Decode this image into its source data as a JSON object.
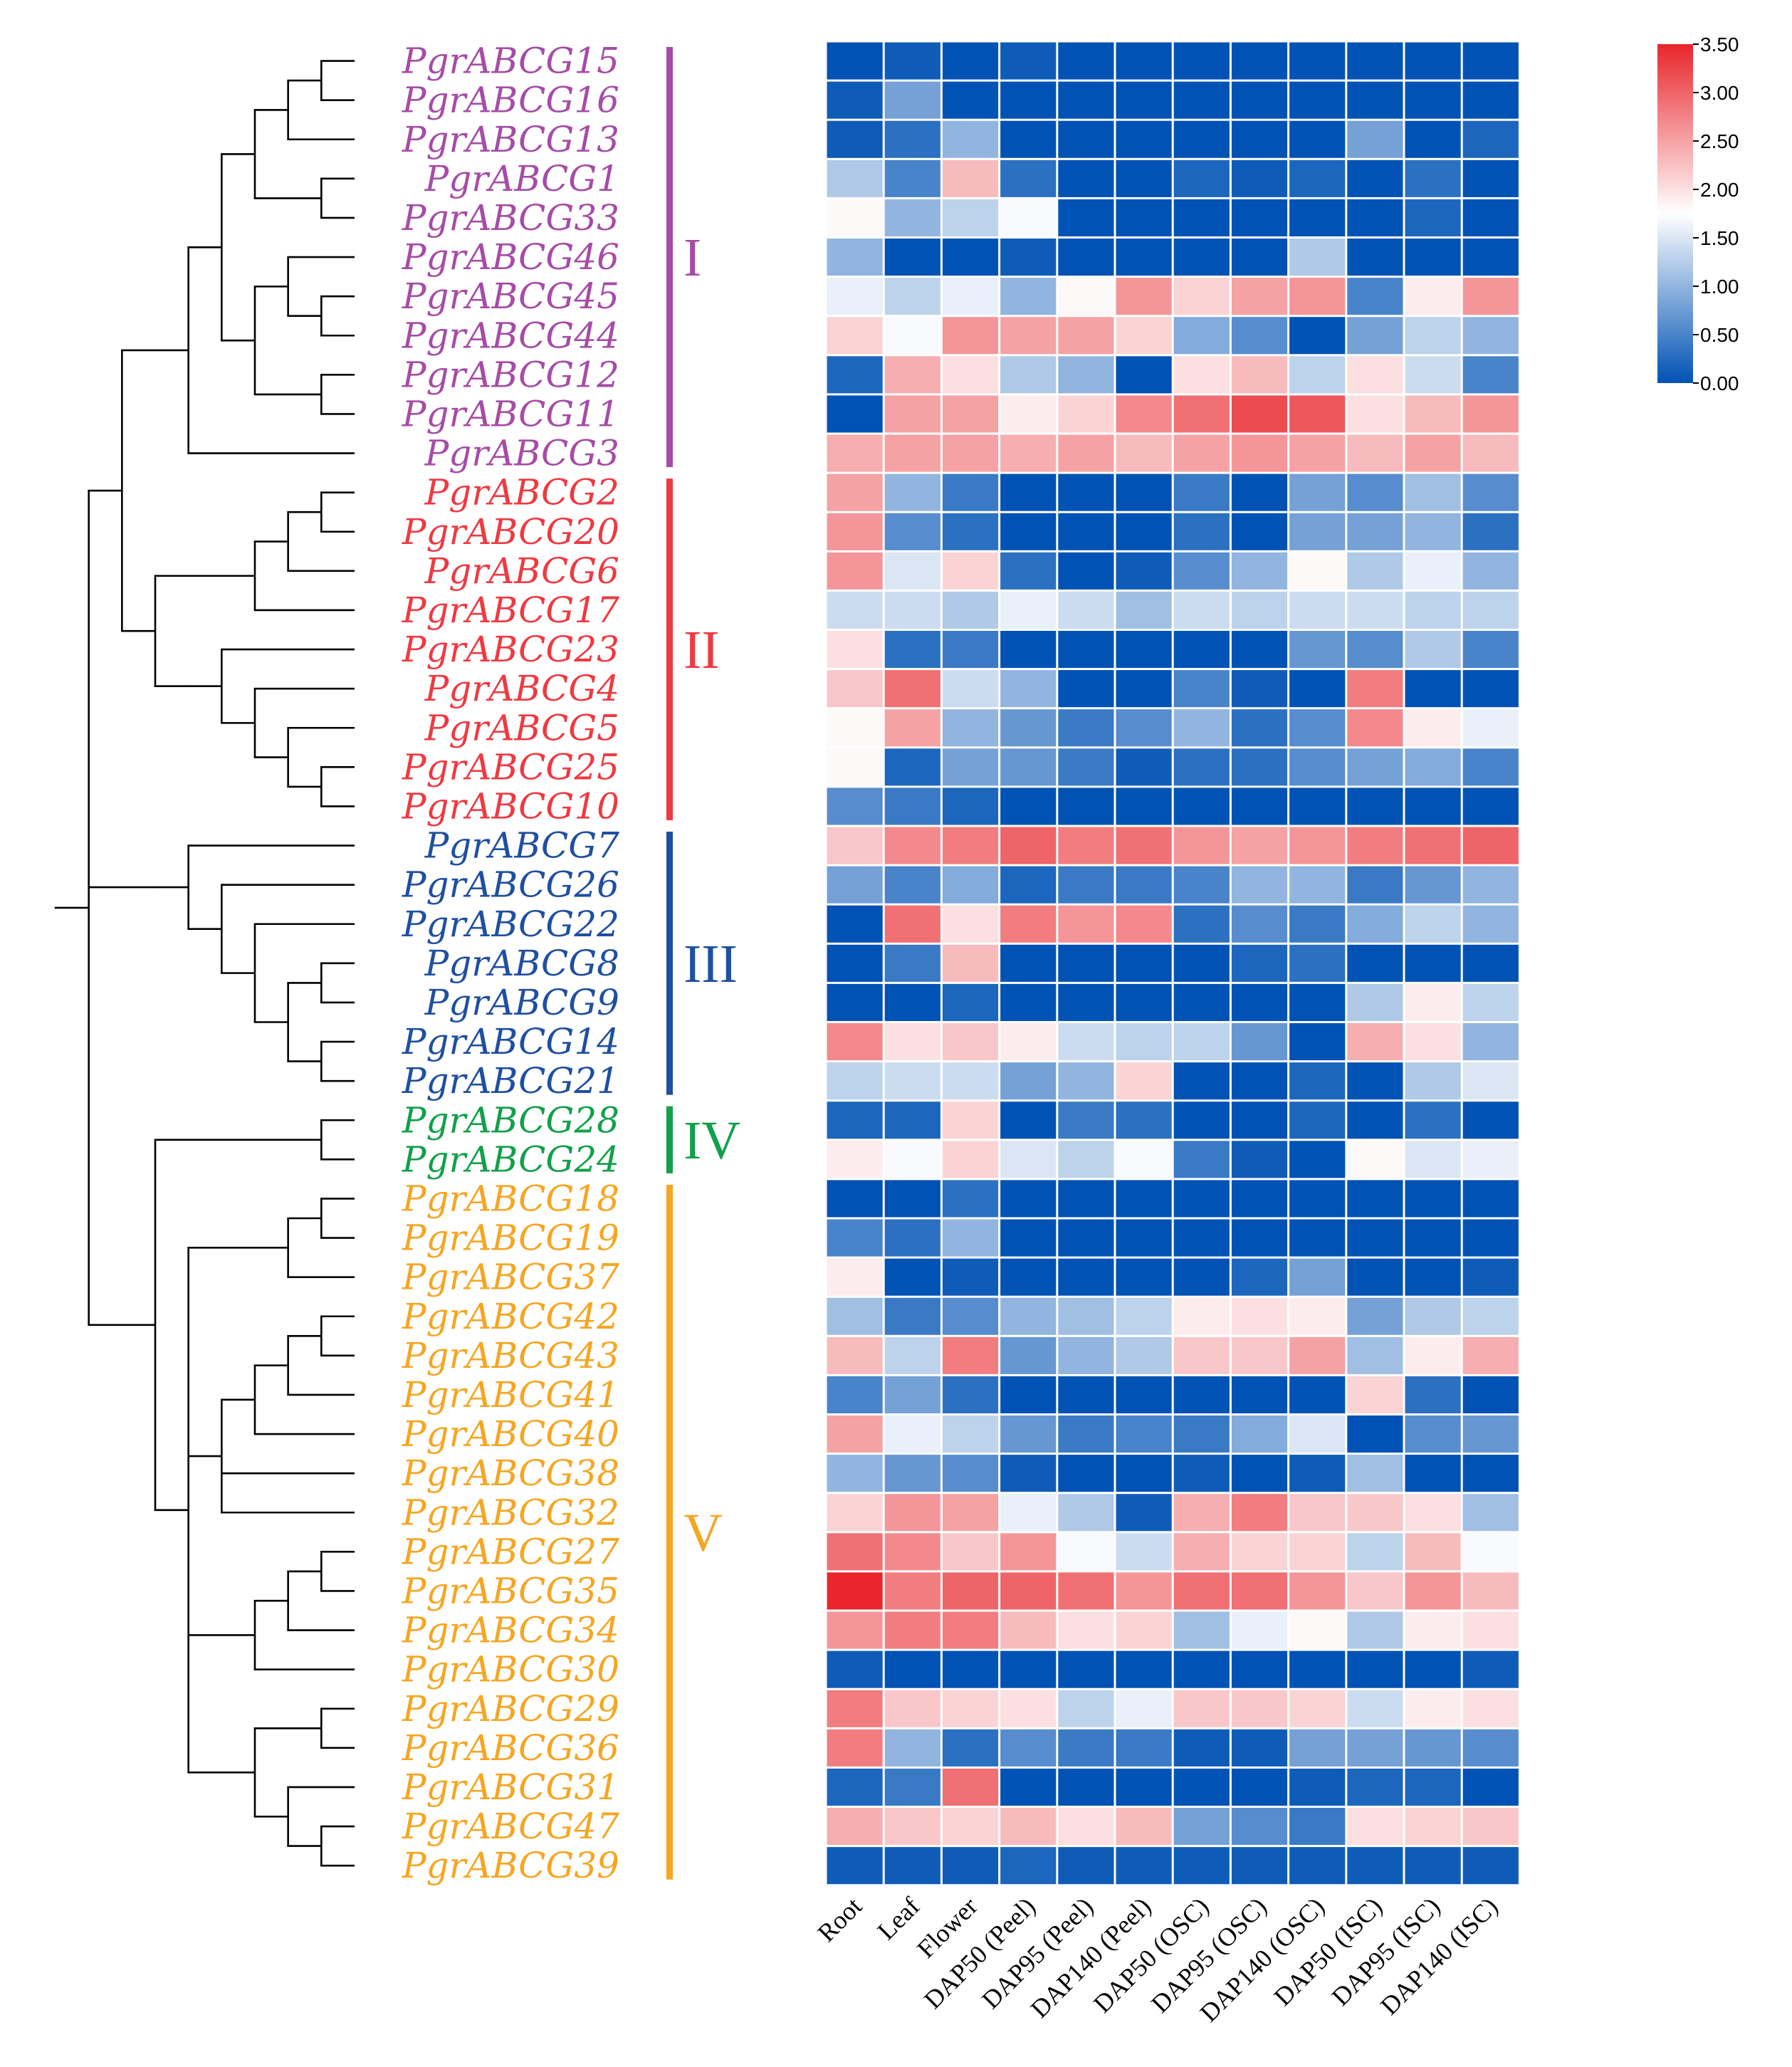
{
  "chart_data": {
    "type": "heatmap",
    "columns": [
      "Root",
      "Leaf",
      "Flower",
      "DAP50 (Peel)",
      "DAP95 (Peel)",
      "DAP140 (Peel)",
      "DAP50 (OSC)",
      "DAP95 (OSC)",
      "DAP140 (OSC)",
      "DAP50 (ISC)",
      "DAP95 (ISC)",
      "DAP140 (ISC)"
    ],
    "rows": [
      {
        "name": "PgrABCG15",
        "group": "I",
        "values": [
          0.0,
          0.1,
          0.0,
          0.1,
          0.0,
          0.0,
          0.0,
          0.0,
          0.0,
          0.0,
          0.0,
          0.0
        ]
      },
      {
        "name": "PgrABCG16",
        "group": "I",
        "values": [
          0.1,
          0.8,
          0.0,
          0.0,
          0.0,
          0.0,
          0.0,
          0.0,
          0.0,
          0.0,
          0.0,
          0.0
        ]
      },
      {
        "name": "PgrABCG13",
        "group": "I",
        "values": [
          0.1,
          0.3,
          1.0,
          0.0,
          0.0,
          0.0,
          0.0,
          0.0,
          0.0,
          0.8,
          0.0,
          0.2
        ]
      },
      {
        "name": "PgrABCG1",
        "group": "I",
        "values": [
          1.2,
          0.5,
          2.3,
          0.3,
          0.0,
          0.0,
          0.2,
          0.1,
          0.2,
          0.0,
          0.3,
          0.0
        ]
      },
      {
        "name": "PgrABCG33",
        "group": "I",
        "values": [
          1.8,
          1.0,
          1.3,
          1.7,
          0.0,
          0.0,
          0.0,
          0.0,
          0.0,
          0.0,
          0.2,
          0.0
        ]
      },
      {
        "name": "PgrABCG46",
        "group": "I",
        "values": [
          1.0,
          0.0,
          0.0,
          0.1,
          0.0,
          0.0,
          0.0,
          0.0,
          1.2,
          0.0,
          0.0,
          0.0
        ]
      },
      {
        "name": "PgrABCG45",
        "group": "I",
        "values": [
          1.6,
          1.3,
          1.6,
          1.0,
          1.8,
          2.6,
          2.1,
          2.5,
          2.6,
          0.5,
          1.9,
          2.6
        ]
      },
      {
        "name": "PgrABCG44",
        "group": "I",
        "values": [
          2.1,
          1.7,
          2.6,
          2.5,
          2.5,
          2.1,
          0.9,
          0.6,
          0.0,
          0.8,
          1.3,
          1.0
        ]
      },
      {
        "name": "PgrABCG12",
        "group": "I",
        "values": [
          0.2,
          2.4,
          2.0,
          1.2,
          1.0,
          0.0,
          2.0,
          2.3,
          1.3,
          2.0,
          1.4,
          0.5
        ]
      },
      {
        "name": "PgrABCG11",
        "group": "I",
        "values": [
          0.0,
          2.5,
          2.5,
          1.9,
          2.1,
          2.7,
          2.9,
          3.2,
          3.1,
          2.0,
          2.3,
          2.6
        ]
      },
      {
        "name": "PgrABCG3",
        "group": "I",
        "values": [
          2.4,
          2.5,
          2.5,
          2.4,
          2.5,
          2.3,
          2.5,
          2.6,
          2.5,
          2.3,
          2.5,
          2.3
        ]
      },
      {
        "name": "PgrABCG2",
        "group": "II",
        "values": [
          2.5,
          1.0,
          0.4,
          0.0,
          0.0,
          0.0,
          0.4,
          0.0,
          0.8,
          0.6,
          1.1,
          0.6
        ]
      },
      {
        "name": "PgrABCG20",
        "group": "II",
        "values": [
          2.6,
          0.6,
          0.3,
          0.0,
          0.0,
          0.0,
          0.3,
          0.0,
          0.8,
          0.8,
          1.0,
          0.3
        ]
      },
      {
        "name": "PgrABCG6",
        "group": "II",
        "values": [
          2.6,
          1.5,
          2.1,
          0.3,
          0.0,
          0.1,
          0.6,
          1.0,
          1.8,
          1.2,
          1.6,
          1.0
        ]
      },
      {
        "name": "PgrABCG17",
        "group": "II",
        "values": [
          1.4,
          1.4,
          1.2,
          1.6,
          1.4,
          1.1,
          1.4,
          1.3,
          1.4,
          1.4,
          1.3,
          1.3
        ]
      },
      {
        "name": "PgrABCG23",
        "group": "II",
        "values": [
          2.0,
          0.3,
          0.4,
          0.0,
          0.0,
          0.0,
          0.0,
          0.0,
          0.7,
          0.6,
          1.2,
          0.5
        ]
      },
      {
        "name": "PgrABCG4",
        "group": "II",
        "values": [
          2.2,
          2.9,
          1.4,
          1.0,
          0.0,
          0.0,
          0.5,
          0.1,
          0.0,
          2.8,
          0.0,
          0.0
        ]
      },
      {
        "name": "PgrABCG5",
        "group": "II",
        "values": [
          1.8,
          2.5,
          1.0,
          0.7,
          0.4,
          0.6,
          1.0,
          0.3,
          0.6,
          2.7,
          1.9,
          1.6
        ]
      },
      {
        "name": "PgrABCG25",
        "group": "II",
        "values": [
          1.8,
          0.2,
          0.8,
          0.7,
          0.4,
          0.1,
          0.3,
          0.3,
          0.6,
          0.8,
          0.9,
          0.5
        ]
      },
      {
        "name": "PgrABCG10",
        "group": "II",
        "values": [
          0.6,
          0.4,
          0.2,
          0.0,
          0.0,
          0.0,
          0.0,
          0.0,
          0.0,
          0.0,
          0.0,
          0.0
        ]
      },
      {
        "name": "PgrABCG7",
        "group": "III",
        "values": [
          2.2,
          2.7,
          2.8,
          3.0,
          2.8,
          2.9,
          2.6,
          2.5,
          2.6,
          2.8,
          2.9,
          3.0
        ]
      },
      {
        "name": "PgrABCG26",
        "group": "III",
        "values": [
          0.8,
          0.5,
          0.9,
          0.2,
          0.4,
          0.4,
          0.5,
          1.0,
          1.0,
          0.4,
          0.7,
          1.0
        ]
      },
      {
        "name": "PgrABCG22",
        "group": "III",
        "values": [
          0.0,
          2.9,
          2.0,
          2.8,
          2.6,
          2.7,
          0.3,
          0.6,
          0.4,
          0.9,
          1.3,
          1.0
        ]
      },
      {
        "name": "PgrABCG8",
        "group": "III",
        "values": [
          0.0,
          0.4,
          2.3,
          0.0,
          0.0,
          0.0,
          0.0,
          0.2,
          0.3,
          0.0,
          0.0,
          0.0
        ]
      },
      {
        "name": "PgrABCG9",
        "group": "III",
        "values": [
          0.0,
          0.0,
          0.2,
          0.0,
          0.0,
          0.0,
          0.0,
          0.0,
          0.0,
          1.2,
          1.9,
          1.3
        ]
      },
      {
        "name": "PgrABCG14",
        "group": "III",
        "values": [
          2.7,
          2.0,
          2.2,
          1.9,
          1.4,
          1.3,
          1.3,
          0.7,
          0.0,
          2.4,
          2.0,
          1.0
        ]
      },
      {
        "name": "PgrABCG21",
        "group": "III",
        "values": [
          1.3,
          1.4,
          1.4,
          0.8,
          1.0,
          2.1,
          0.0,
          0.0,
          0.2,
          0.0,
          1.2,
          1.5
        ]
      },
      {
        "name": "PgrABCG28",
        "group": "IV",
        "values": [
          0.2,
          0.2,
          2.1,
          0.0,
          0.4,
          0.3,
          0.0,
          0.0,
          0.2,
          0.0,
          0.3,
          0.0
        ]
      },
      {
        "name": "PgrABCG24",
        "group": "IV",
        "values": [
          1.9,
          1.7,
          2.1,
          1.5,
          1.3,
          1.7,
          0.4,
          0.1,
          0.0,
          1.8,
          1.5,
          1.6
        ]
      },
      {
        "name": "PgrABCG18",
        "group": "V",
        "values": [
          0.0,
          0.0,
          0.3,
          0.0,
          0.0,
          0.0,
          0.0,
          0.0,
          0.0,
          0.0,
          0.0,
          0.0
        ]
      },
      {
        "name": "PgrABCG19",
        "group": "V",
        "values": [
          0.5,
          0.3,
          1.0,
          0.0,
          0.0,
          0.0,
          0.0,
          0.0,
          0.0,
          0.0,
          0.0,
          0.0
        ]
      },
      {
        "name": "PgrABCG37",
        "group": "V",
        "values": [
          1.9,
          0.0,
          0.1,
          0.0,
          0.0,
          0.0,
          0.0,
          0.2,
          0.8,
          0.0,
          0.0,
          0.1
        ]
      },
      {
        "name": "PgrABCG42",
        "group": "V",
        "values": [
          1.1,
          0.4,
          0.6,
          1.0,
          1.1,
          1.3,
          1.9,
          2.0,
          1.9,
          0.8,
          1.2,
          1.3
        ]
      },
      {
        "name": "PgrABCG43",
        "group": "V",
        "values": [
          2.3,
          1.3,
          2.8,
          0.7,
          1.0,
          1.2,
          2.2,
          2.2,
          2.5,
          1.1,
          1.9,
          2.4
        ]
      },
      {
        "name": "PgrABCG41",
        "group": "V",
        "values": [
          0.5,
          0.8,
          0.3,
          0.0,
          0.0,
          0.0,
          0.0,
          0.0,
          0.0,
          2.1,
          0.3,
          0.0
        ]
      },
      {
        "name": "PgrABCG40",
        "group": "V",
        "values": [
          2.5,
          1.6,
          1.3,
          0.7,
          0.4,
          0.5,
          0.4,
          0.9,
          1.5,
          0.0,
          0.6,
          0.7
        ]
      },
      {
        "name": "PgrABCG38",
        "group": "V",
        "values": [
          1.0,
          0.7,
          0.6,
          0.1,
          0.0,
          0.0,
          0.1,
          0.0,
          0.1,
          1.1,
          0.0,
          0.0
        ]
      },
      {
        "name": "PgrABCG32",
        "group": "V",
        "values": [
          2.1,
          2.6,
          2.5,
          1.6,
          1.2,
          0.1,
          2.4,
          2.8,
          2.2,
          2.2,
          2.0,
          1.1
        ]
      },
      {
        "name": "PgrABCG27",
        "group": "V",
        "values": [
          2.9,
          2.7,
          2.2,
          2.6,
          1.7,
          1.4,
          2.4,
          2.1,
          2.1,
          1.3,
          2.3,
          1.7
        ]
      },
      {
        "name": "PgrABCG35",
        "group": "V",
        "values": [
          3.5,
          2.8,
          3.0,
          3.0,
          2.9,
          2.6,
          2.9,
          2.9,
          2.6,
          2.2,
          2.6,
          2.3
        ]
      },
      {
        "name": "PgrABCG34",
        "group": "V",
        "values": [
          2.6,
          2.8,
          2.8,
          2.3,
          2.0,
          2.1,
          1.1,
          1.6,
          1.8,
          1.2,
          1.9,
          2.0
        ]
      },
      {
        "name": "PgrABCG30",
        "group": "V",
        "values": [
          0.1,
          0.0,
          0.0,
          0.0,
          0.0,
          0.0,
          0.0,
          0.0,
          0.0,
          0.0,
          0.0,
          0.1
        ]
      },
      {
        "name": "PgrABCG29",
        "group": "V",
        "values": [
          2.8,
          2.2,
          2.1,
          2.0,
          1.3,
          1.6,
          2.2,
          2.2,
          2.1,
          1.4,
          1.9,
          2.0
        ]
      },
      {
        "name": "PgrABCG36",
        "group": "V",
        "values": [
          2.8,
          1.0,
          0.3,
          0.6,
          0.4,
          0.4,
          0.1,
          0.1,
          0.8,
          0.8,
          0.7,
          0.6
        ]
      },
      {
        "name": "PgrABCG31",
        "group": "V",
        "values": [
          0.2,
          0.4,
          2.9,
          0.0,
          0.0,
          0.0,
          0.0,
          0.0,
          0.1,
          0.2,
          0.2,
          0.0
        ]
      },
      {
        "name": "PgrABCG47",
        "group": "V",
        "values": [
          2.4,
          2.2,
          2.1,
          2.3,
          2.0,
          2.3,
          0.8,
          0.6,
          0.4,
          2.0,
          2.1,
          2.2
        ]
      },
      {
        "name": "PgrABCG39",
        "group": "V",
        "values": [
          0.1,
          0.1,
          0.1,
          0.2,
          0.1,
          0.1,
          0.1,
          0.1,
          0.1,
          0.1,
          0.1,
          0.1
        ]
      }
    ],
    "groups": [
      {
        "label": "I",
        "color": "#a64ca6"
      },
      {
        "label": "II",
        "color": "#ee3a42"
      },
      {
        "label": "III",
        "color": "#1f4fa0"
      },
      {
        "label": "IV",
        "color": "#12a04a"
      },
      {
        "label": "V",
        "color": "#f5a623"
      }
    ],
    "color_scale": {
      "range": [
        0,
        3.5
      ],
      "low": "#0052b4",
      "mid": "#ffffff",
      "high": "#e8262c",
      "ticks": [
        "3.50",
        "3.00",
        "2.50",
        "2.00",
        "1.50",
        "1.00",
        "0.50",
        "0.00"
      ]
    },
    "dendrogram": "((((((((15,16),13),(1,33)),((46,(45,44)),(12,11))),3),((((2,20),6),17),((23,(4,(5,(25,10))))))),((7,(26,(22,((8,9),(14,21)))))),((28,24),(((18,19),37),((((42,43),41),40),38,32),(((27,35),34),30),((29,36),(31,(47,39)))))))"
  }
}
